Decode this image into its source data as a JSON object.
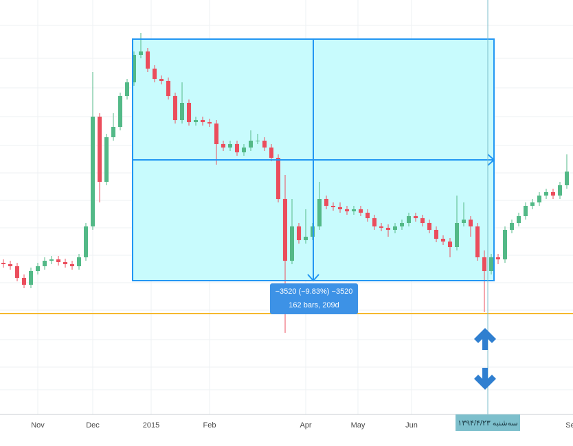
{
  "chart_data": {
    "type": "candlestick",
    "up_color": "#53b987",
    "down_color": "#eb4d5c",
    "x_labels": [
      "Nov",
      "Dec",
      "2015",
      "Feb",
      "Apr",
      "May",
      "Jun",
      "Se"
    ],
    "ohlc": [
      [
        262,
        267,
        255,
        260
      ],
      [
        260,
        265,
        252,
        257
      ],
      [
        257,
        262,
        235,
        240
      ],
      [
        240,
        245,
        225,
        230
      ],
      [
        230,
        255,
        225,
        250
      ],
      [
        250,
        262,
        245,
        257
      ],
      [
        257,
        270,
        252,
        265
      ],
      [
        265,
        272,
        260,
        267
      ],
      [
        267,
        272,
        258,
        263
      ],
      [
        263,
        268,
        255,
        260
      ],
      [
        260,
        265,
        252,
        257
      ],
      [
        257,
        275,
        252,
        270
      ],
      [
        270,
        320,
        265,
        315
      ],
      [
        315,
        540,
        310,
        475
      ],
      [
        475,
        480,
        350,
        380
      ],
      [
        380,
        450,
        375,
        445
      ],
      [
        445,
        480,
        440,
        460
      ],
      [
        460,
        510,
        455,
        505
      ],
      [
        505,
        530,
        500,
        525
      ],
      [
        525,
        570,
        520,
        565
      ],
      [
        565,
        597,
        560,
        570
      ],
      [
        570,
        575,
        540,
        545
      ],
      [
        545,
        550,
        525,
        530
      ],
      [
        530,
        535,
        522,
        527
      ],
      [
        527,
        532,
        500,
        505
      ],
      [
        505,
        510,
        465,
        470
      ],
      [
        470,
        525,
        465,
        495
      ],
      [
        495,
        500,
        462,
        467
      ],
      [
        467,
        475,
        462,
        470
      ],
      [
        470,
        475,
        462,
        467
      ],
      [
        467,
        472,
        460,
        465
      ],
      [
        465,
        470,
        405,
        435
      ],
      [
        435,
        440,
        425,
        430
      ],
      [
        430,
        440,
        425,
        435
      ],
      [
        435,
        440,
        418,
        423
      ],
      [
        423,
        435,
        418,
        430
      ],
      [
        430,
        455,
        425,
        440
      ],
      [
        440,
        450,
        435,
        440
      ],
      [
        440,
        445,
        425,
        430
      ],
      [
        430,
        435,
        410,
        415
      ],
      [
        415,
        420,
        350,
        355
      ],
      [
        355,
        390,
        160,
        265
      ],
      [
        265,
        355,
        260,
        315
      ],
      [
        315,
        320,
        290,
        295
      ],
      [
        295,
        340,
        290,
        300
      ],
      [
        300,
        320,
        295,
        315
      ],
      [
        315,
        380,
        310,
        355
      ],
      [
        355,
        360,
        340,
        345
      ],
      [
        345,
        350,
        338,
        343
      ],
      [
        343,
        350,
        335,
        340
      ],
      [
        340,
        345,
        332,
        337
      ],
      [
        337,
        345,
        332,
        340
      ],
      [
        340,
        345,
        330,
        335
      ],
      [
        335,
        340,
        322,
        327
      ],
      [
        327,
        332,
        310,
        315
      ],
      [
        315,
        320,
        308,
        313
      ],
      [
        313,
        318,
        300,
        310
      ],
      [
        310,
        320,
        305,
        315
      ],
      [
        315,
        325,
        310,
        320
      ],
      [
        320,
        335,
        315,
        330
      ],
      [
        330,
        335,
        322,
        327
      ],
      [
        327,
        332,
        315,
        320
      ],
      [
        320,
        325,
        305,
        310
      ],
      [
        310,
        315,
        292,
        297
      ],
      [
        297,
        302,
        288,
        293
      ],
      [
        293,
        298,
        270,
        285
      ],
      [
        285,
        360,
        280,
        320
      ],
      [
        320,
        350,
        315,
        325
      ],
      [
        325,
        330,
        300,
        315
      ],
      [
        315,
        320,
        265,
        270
      ],
      [
        270,
        280,
        190,
        250
      ],
      [
        250,
        275,
        245,
        270
      ],
      [
        270,
        275,
        260,
        267
      ],
      [
        267,
        315,
        262,
        310
      ],
      [
        310,
        325,
        305,
        320
      ],
      [
        320,
        335,
        315,
        330
      ],
      [
        330,
        350,
        325,
        345
      ],
      [
        345,
        355,
        340,
        350
      ],
      [
        350,
        365,
        345,
        360
      ],
      [
        360,
        370,
        355,
        365
      ],
      [
        365,
        370,
        355,
        360
      ],
      [
        360,
        380,
        355,
        375
      ],
      [
        375,
        420,
        370,
        395
      ]
    ],
    "measure": {
      "line1": "−3520 (−9.83%) −3520",
      "line2": "162 bars, 209d"
    },
    "date_label": "سه‌شنبه ۱۳۹۴/۴/۲۳"
  }
}
